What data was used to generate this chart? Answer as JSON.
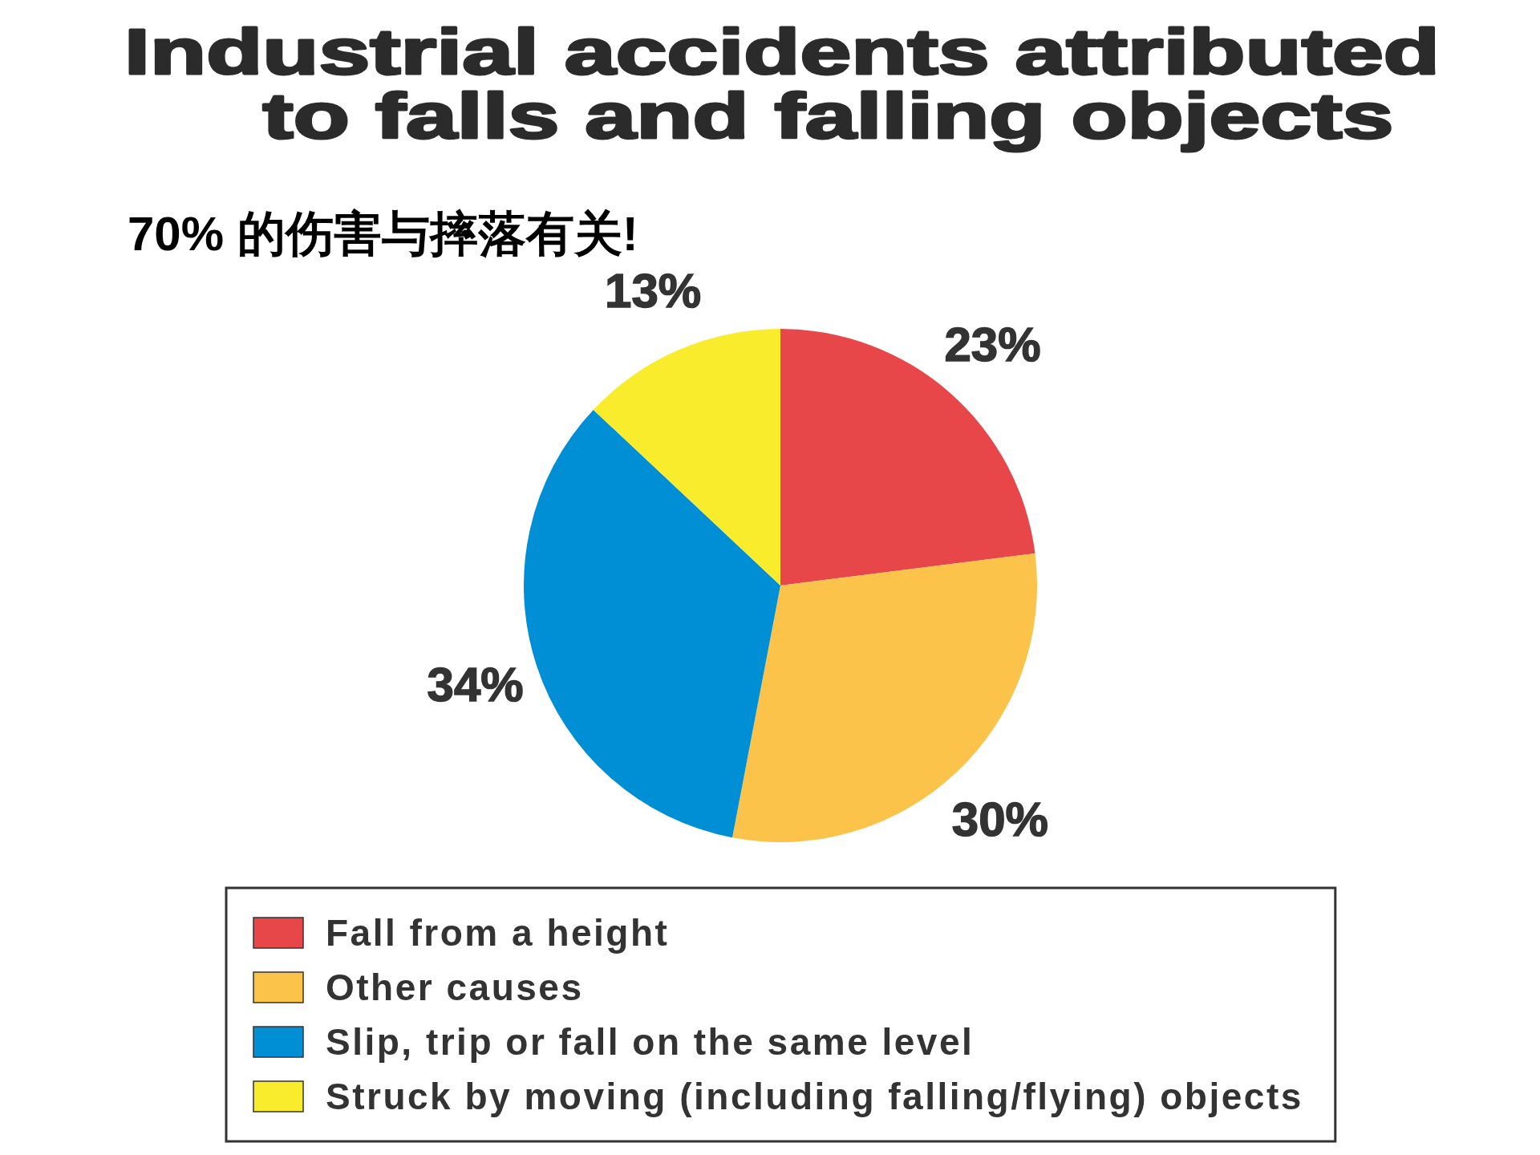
{
  "chart_data": {
    "type": "pie",
    "title": "Industrial accidents attributed to falls and falling objects",
    "subtitle": "70% 的伤害与摔落有关!",
    "categories": [
      "Fall from a height",
      "Other causes",
      "Slip, trip or fall on the same level",
      "Struck by moving (including falling/flying) objects"
    ],
    "values": [
      23,
      30,
      34,
      13
    ],
    "colors": [
      "#e8474a",
      "#fbc34a",
      "#008fd5",
      "#f8ec2c"
    ],
    "value_labels": [
      "23%",
      "30%",
      "34%",
      "13%"
    ],
    "legend": "bottom"
  }
}
